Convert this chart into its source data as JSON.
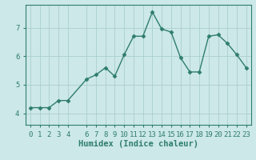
{
  "x_data": [
    0,
    1,
    2,
    3,
    4,
    6,
    7,
    8,
    9,
    10,
    11,
    12,
    13,
    14,
    15,
    16,
    17,
    18,
    19,
    20,
    21,
    22,
    23
  ],
  "y_data": [
    4.2,
    4.2,
    4.2,
    4.45,
    4.45,
    5.2,
    5.35,
    5.6,
    5.3,
    6.05,
    6.7,
    6.7,
    7.55,
    6.95,
    6.85,
    5.95,
    5.45,
    5.45,
    6.7,
    6.75,
    6.45,
    6.05,
    5.6
  ],
  "xlabel": "Humidex (Indice chaleur)",
  "xlim": [
    -0.5,
    23.5
  ],
  "ylim": [
    3.6,
    7.8
  ],
  "yticks": [
    4,
    5,
    6,
    7
  ],
  "xtick_positions": [
    0,
    1,
    2,
    3,
    4,
    6,
    7,
    8,
    9,
    10,
    11,
    12,
    13,
    14,
    15,
    16,
    17,
    18,
    19,
    20,
    21,
    22,
    23
  ],
  "xtick_labels": [
    "0",
    "1",
    "2",
    "3",
    "4",
    "6",
    "7",
    "8",
    "9",
    "10",
    "11",
    "12",
    "13",
    "14",
    "15",
    "16",
    "17",
    "18",
    "19",
    "20",
    "21",
    "22",
    "23"
  ],
  "line_color": "#2e7d6e",
  "bg_color": "#cde8e8",
  "grid_color": "#aacece",
  "marker": "D",
  "marker_size": 2.5,
  "line_width": 1.0,
  "tick_fontsize": 6.5,
  "xlabel_fontsize": 7.5
}
